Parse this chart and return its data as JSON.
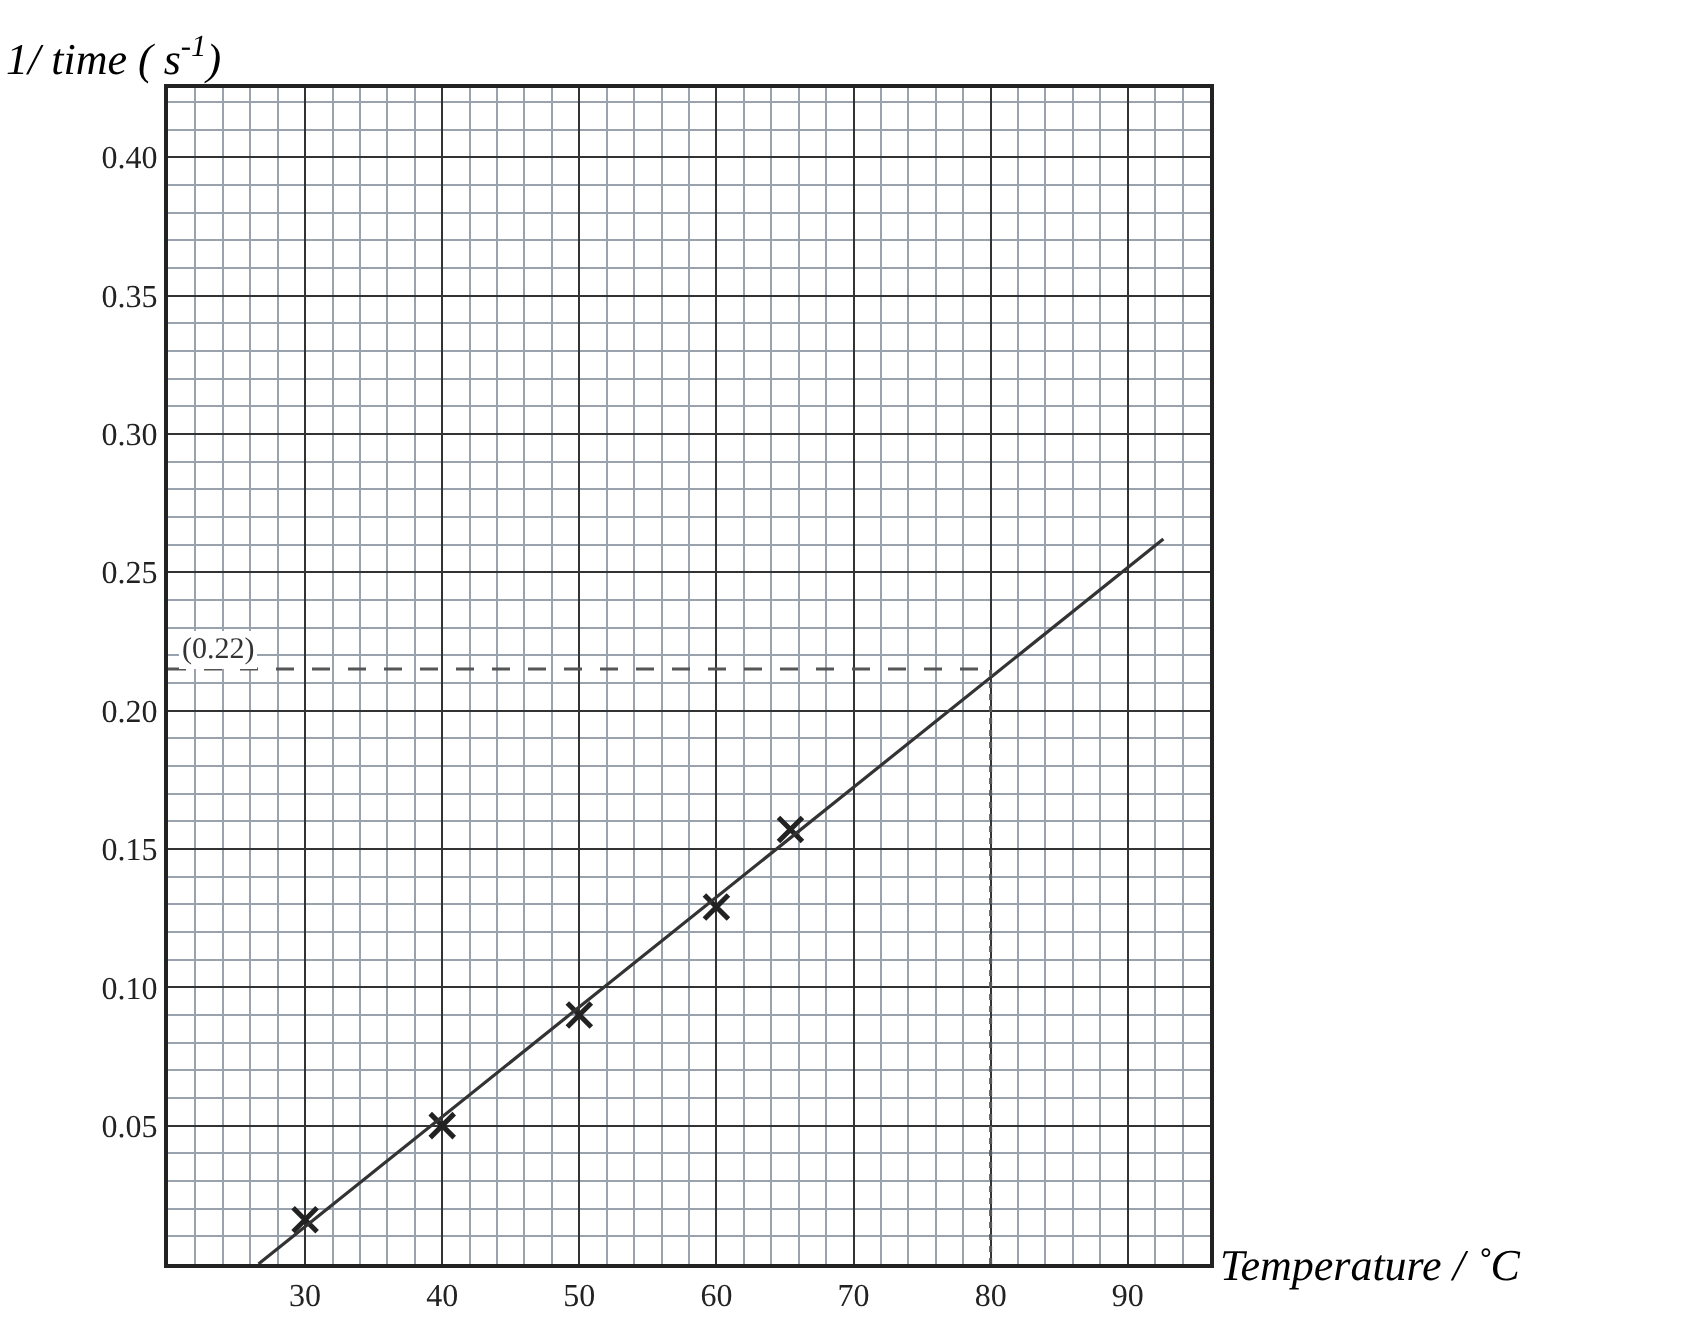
{
  "chart_data": {
    "type": "scatter",
    "xlabel": "Temperature / ˚C",
    "ylabel": "1/ time ( s$^{-1}$)",
    "x": [
      30,
      40,
      50,
      60,
      65.4
    ],
    "series": [
      {
        "color": "#222222",
        "marker": "cross",
        "values": [
          0.016,
          0.05,
          0.09,
          0.129,
          0.157
        ]
      },
      {
        "type": "line",
        "color": "#333333",
        "x": [
          26.6,
          92.6
        ],
        "values": [
          0,
          0.262
        ]
      }
    ],
    "xlim": [
      20,
      96
    ],
    "ylim": [
      0,
      0.425
    ],
    "xticks": [
      30,
      40,
      50,
      60,
      70,
      80,
      90
    ],
    "yticks": [
      {
        "value": 0.05,
        "label": "0.05"
      },
      {
        "value": 0.1,
        "label": "0.10"
      },
      {
        "value": 0.15,
        "label": "0.15"
      },
      {
        "value": 0.2,
        "label": "0.20"
      },
      {
        "value": 0.25,
        "label": "0.25"
      },
      {
        "value": 0.3,
        "label": "0.30"
      },
      {
        "value": 0.35,
        "label": "0.35"
      },
      {
        "value": 0.4,
        "label": "0.40"
      }
    ],
    "ref_lines": [
      {
        "axis": "y",
        "value": 0.215,
        "label": "(0.22)",
        "line_style": "dashed",
        "color": "#555555"
      },
      {
        "axis": "x",
        "value": 80,
        "line_style": "dotted",
        "color": "#555555"
      }
    ],
    "grid": true
  }
}
